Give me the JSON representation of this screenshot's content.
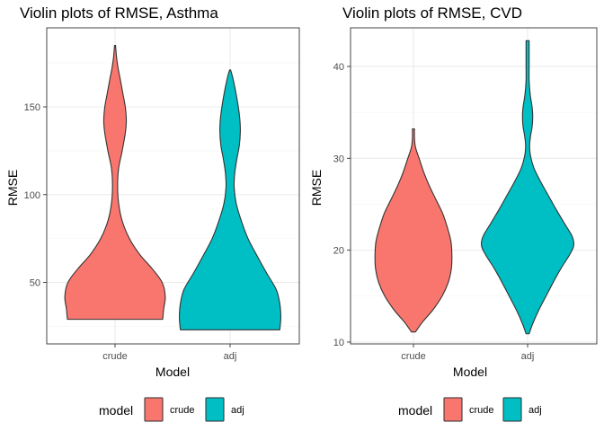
{
  "colors": {
    "crude": "#F8766D",
    "adj": "#00BFC4",
    "outline": "#333333",
    "grid_major": "#EBEBEB",
    "grid_minor": "#F5F5F5",
    "panel_border": "#333333",
    "axis_text": "#4D4D4D"
  },
  "chart_data": [
    {
      "type": "violin",
      "title": "Violin plots of RMSE, Asthma",
      "xlabel": "Model",
      "ylabel": "RMSE",
      "categories": [
        "crude",
        "adj"
      ],
      "yticks": [
        50,
        100,
        150
      ],
      "ylim": [
        15,
        195
      ],
      "grid": true,
      "series": [
        {
          "name": "crude",
          "min": 29,
          "max": 185,
          "density": [
            [
              29,
              0.93
            ],
            [
              35,
              0.95
            ],
            [
              42,
              0.98
            ],
            [
              50,
              0.92
            ],
            [
              58,
              0.72
            ],
            [
              66,
              0.48
            ],
            [
              75,
              0.28
            ],
            [
              85,
              0.14
            ],
            [
              95,
              0.07
            ],
            [
              105,
              0.05
            ],
            [
              115,
              0.07
            ],
            [
              125,
              0.14
            ],
            [
              135,
              0.2
            ],
            [
              142,
              0.22
            ],
            [
              150,
              0.2
            ],
            [
              158,
              0.15
            ],
            [
              166,
              0.1
            ],
            [
              172,
              0.06
            ],
            [
              178,
              0.03
            ],
            [
              185,
              0.01
            ]
          ]
        },
        {
          "name": "adj",
          "min": 23,
          "max": 171,
          "density": [
            [
              23,
              0.97
            ],
            [
              30,
              0.99
            ],
            [
              38,
              0.97
            ],
            [
              46,
              0.9
            ],
            [
              55,
              0.72
            ],
            [
              65,
              0.53
            ],
            [
              75,
              0.35
            ],
            [
              85,
              0.22
            ],
            [
              95,
              0.12
            ],
            [
              104,
              0.08
            ],
            [
              112,
              0.09
            ],
            [
              120,
              0.13
            ],
            [
              128,
              0.18
            ],
            [
              136,
              0.2
            ],
            [
              143,
              0.19
            ],
            [
              150,
              0.16
            ],
            [
              157,
              0.12
            ],
            [
              163,
              0.08
            ],
            [
              168,
              0.04
            ],
            [
              171,
              0.01
            ]
          ]
        }
      ]
    },
    {
      "type": "violin",
      "title": "Violin plots of RMSE, CVD",
      "xlabel": "Model",
      "ylabel": "RMSE",
      "categories": [
        "crude",
        "adj"
      ],
      "yticks": [
        10,
        20,
        30,
        40
      ],
      "ylim": [
        9.8,
        44.2
      ],
      "grid": true,
      "series": [
        {
          "name": "crude",
          "min": 11.1,
          "max": 33.2,
          "density": [
            [
              11.1,
              0.04
            ],
            [
              12.2,
              0.18
            ],
            [
              13.5,
              0.38
            ],
            [
              15,
              0.56
            ],
            [
              16.5,
              0.68
            ],
            [
              18,
              0.74
            ],
            [
              19.5,
              0.75
            ],
            [
              21,
              0.73
            ],
            [
              22.5,
              0.66
            ],
            [
              24,
              0.57
            ],
            [
              25.5,
              0.44
            ],
            [
              27,
              0.31
            ],
            [
              28.5,
              0.2
            ],
            [
              30,
              0.11
            ],
            [
              31.2,
              0.04
            ],
            [
              32.2,
              0.02
            ],
            [
              33.2,
              0.02
            ]
          ]
        },
        {
          "name": "adj",
          "min": 10.9,
          "max": 42.8,
          "density": [
            [
              10.9,
              0.03
            ],
            [
              12,
              0.1
            ],
            [
              13.5,
              0.22
            ],
            [
              15,
              0.36
            ],
            [
              16.5,
              0.5
            ],
            [
              18,
              0.65
            ],
            [
              19.5,
              0.82
            ],
            [
              20.5,
              0.9
            ],
            [
              21.5,
              0.87
            ],
            [
              23,
              0.71
            ],
            [
              24.5,
              0.55
            ],
            [
              26,
              0.4
            ],
            [
              27.5,
              0.25
            ],
            [
              29,
              0.12
            ],
            [
              30.5,
              0.05
            ],
            [
              31.5,
              0.04
            ],
            [
              32.5,
              0.06
            ],
            [
              33.5,
              0.09
            ],
            [
              34.5,
              0.1
            ],
            [
              35.5,
              0.09
            ],
            [
              37,
              0.05
            ],
            [
              38.5,
              0.03
            ],
            [
              40,
              0.03
            ],
            [
              41.5,
              0.03
            ],
            [
              42.8,
              0.03
            ]
          ]
        }
      ]
    }
  ],
  "legends": [
    {
      "title": "model",
      "items": [
        {
          "label": "crude",
          "color_key": "crude"
        },
        {
          "label": "adj",
          "color_key": "adj"
        }
      ]
    },
    {
      "title": "model",
      "items": [
        {
          "label": "crude",
          "color_key": "crude"
        },
        {
          "label": "adj",
          "color_key": "adj"
        }
      ]
    }
  ]
}
